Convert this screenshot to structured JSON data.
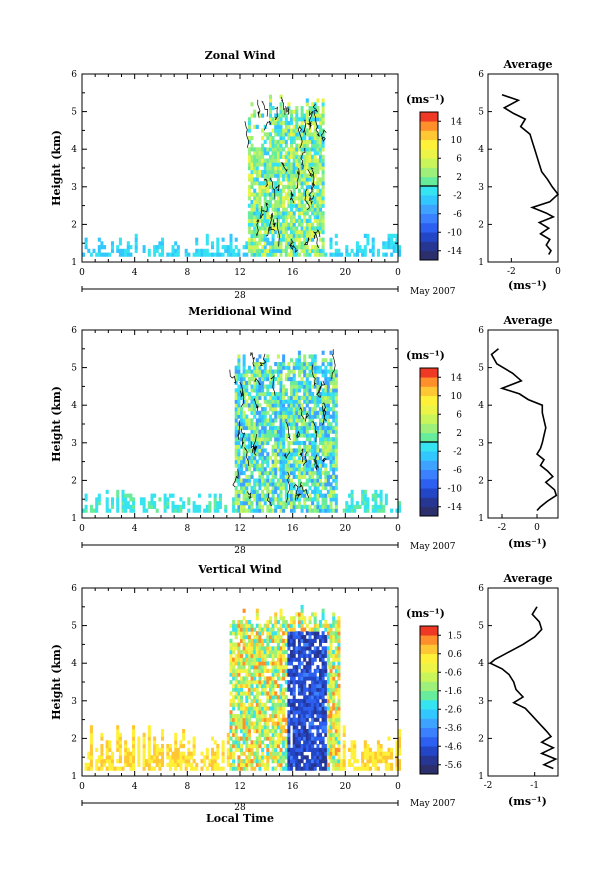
{
  "chart_data": [
    {
      "type": "heatmap",
      "title": "Zonal Wind",
      "ylabel": "Height (km)",
      "xlim": [
        0,
        24
      ],
      "ylim": [
        1,
        6
      ],
      "x_ticks": [
        "0",
        "4",
        "8",
        "12",
        "16",
        "20",
        "0"
      ],
      "y_ticks": [
        "1",
        "2",
        "3",
        "4",
        "5",
        "6"
      ],
      "date_label": "28",
      "month_label": "May 2007",
      "colorbar": {
        "title": "(ms⁻¹)",
        "ticks": [
          "14",
          "10",
          "6",
          "2",
          "-2",
          "-6",
          "-10",
          "-14"
        ],
        "range": [
          -16,
          16
        ]
      },
      "profile": {
        "title": "Average",
        "xlabel": "(ms⁻¹)",
        "x_ticks": [
          "-2",
          "0"
        ],
        "xlim": [
          -3.0,
          0.0
        ],
        "points": [
          [
            -2.4,
            5.45
          ],
          [
            -1.7,
            5.3
          ],
          [
            -2.3,
            5.1
          ],
          [
            -1.9,
            4.95
          ],
          [
            -1.4,
            4.8
          ],
          [
            -1.6,
            4.6
          ],
          [
            -1.2,
            4.4
          ],
          [
            -1.1,
            4.2
          ],
          [
            -1.0,
            4.0
          ],
          [
            -0.9,
            3.8
          ],
          [
            -0.8,
            3.6
          ],
          [
            -0.7,
            3.4
          ],
          [
            -0.45,
            3.2
          ],
          [
            -0.25,
            3.0
          ],
          [
            0.0,
            2.8
          ],
          [
            -0.35,
            2.6
          ],
          [
            -1.1,
            2.45
          ],
          [
            -0.5,
            2.3
          ],
          [
            -0.2,
            2.2
          ],
          [
            -0.8,
            2.05
          ],
          [
            -0.4,
            1.9
          ],
          [
            -0.75,
            1.75
          ],
          [
            -0.35,
            1.6
          ],
          [
            -0.5,
            1.45
          ],
          [
            -0.3,
            1.3
          ],
          [
            -0.4,
            1.2
          ]
        ]
      },
      "field": {
        "kind": "zonal",
        "core_start": 12.5,
        "core_end": 18.2,
        "top": 5.4,
        "seed": 11
      }
    },
    {
      "type": "heatmap",
      "title": "Meridional Wind",
      "ylabel": "Height (km)",
      "xlim": [
        0,
        24
      ],
      "ylim": [
        1,
        6
      ],
      "x_ticks": [
        "0",
        "4",
        "8",
        "12",
        "16",
        "20",
        "0"
      ],
      "y_ticks": [
        "1",
        "2",
        "3",
        "4",
        "5",
        "6"
      ],
      "date_label": "28",
      "month_label": "May 2007",
      "colorbar": {
        "title": "(ms⁻¹)",
        "ticks": [
          "14",
          "10",
          "6",
          "2",
          "-2",
          "-6",
          "-10",
          "-14"
        ],
        "range": [
          -16,
          16
        ]
      },
      "profile": {
        "title": "Average",
        "xlabel": "(ms⁻¹)",
        "x_ticks": [
          "-2",
          "0"
        ],
        "xlim": [
          -2.8,
          1.2
        ],
        "points": [
          [
            -2.2,
            5.5
          ],
          [
            -2.6,
            5.35
          ],
          [
            -2.3,
            5.1
          ],
          [
            -1.4,
            4.85
          ],
          [
            -0.9,
            4.65
          ],
          [
            -2.0,
            4.45
          ],
          [
            -1.0,
            4.3
          ],
          [
            -0.5,
            4.15
          ],
          [
            0.3,
            4.0
          ],
          [
            0.3,
            3.8
          ],
          [
            0.4,
            3.6
          ],
          [
            0.5,
            3.4
          ],
          [
            0.4,
            3.2
          ],
          [
            0.3,
            3.0
          ],
          [
            0.2,
            2.85
          ],
          [
            0.0,
            2.7
          ],
          [
            0.4,
            2.55
          ],
          [
            0.2,
            2.4
          ],
          [
            0.6,
            2.25
          ],
          [
            0.9,
            2.1
          ],
          [
            0.5,
            1.95
          ],
          [
            1.0,
            1.75
          ],
          [
            1.1,
            1.6
          ],
          [
            0.6,
            1.45
          ],
          [
            0.2,
            1.3
          ],
          [
            0.0,
            1.2
          ]
        ]
      },
      "field": {
        "kind": "meridional",
        "core_start": 11.5,
        "core_end": 19.2,
        "top": 5.5,
        "seed": 23
      }
    },
    {
      "type": "heatmap",
      "title": "Vertical Wind",
      "ylabel": "Height (km)",
      "xlabel": "Local Time",
      "xlim": [
        0,
        24
      ],
      "ylim": [
        1,
        6
      ],
      "x_ticks": [
        "0",
        "4",
        "8",
        "12",
        "16",
        "20",
        "0"
      ],
      "y_ticks": [
        "1",
        "2",
        "3",
        "4",
        "5",
        "6"
      ],
      "date_label": "28",
      "month_label": "May 2007",
      "colorbar": {
        "title": "(ms⁻¹)",
        "ticks": [
          "1.5",
          "0.6",
          "-0.6",
          "-1.6",
          "-2.6",
          "-3.6",
          "-4.6",
          "-5.6"
        ],
        "range": [
          -6.0,
          2.0
        ]
      },
      "profile": {
        "title": "Average",
        "xlabel": "(ms⁻¹)",
        "x_ticks": [
          "-2",
          "-1"
        ],
        "xlim": [
          -2.0,
          -0.5
        ],
        "points": [
          [
            -0.95,
            5.5
          ],
          [
            -1.05,
            5.3
          ],
          [
            -0.9,
            5.1
          ],
          [
            -0.85,
            4.9
          ],
          [
            -1.0,
            4.7
          ],
          [
            -1.25,
            4.5
          ],
          [
            -1.55,
            4.3
          ],
          [
            -1.85,
            4.1
          ],
          [
            -1.95,
            4.0
          ],
          [
            -1.7,
            3.85
          ],
          [
            -1.55,
            3.7
          ],
          [
            -1.45,
            3.5
          ],
          [
            -1.4,
            3.3
          ],
          [
            -1.25,
            3.1
          ],
          [
            -1.45,
            2.95
          ],
          [
            -1.2,
            2.8
          ],
          [
            -1.05,
            2.6
          ],
          [
            -0.9,
            2.4
          ],
          [
            -0.75,
            2.2
          ],
          [
            -0.65,
            2.05
          ],
          [
            -0.85,
            1.9
          ],
          [
            -0.6,
            1.75
          ],
          [
            -0.85,
            1.6
          ],
          [
            -0.55,
            1.45
          ],
          [
            -0.8,
            1.3
          ],
          [
            -0.6,
            1.2
          ]
        ]
      },
      "field": {
        "kind": "vertical",
        "core_start": 11.0,
        "core_end": 19.5,
        "top": 5.5,
        "seed": 37
      }
    }
  ]
}
